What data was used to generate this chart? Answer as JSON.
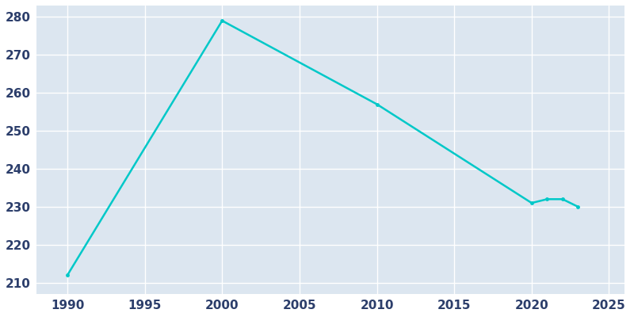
{
  "years": [
    1990,
    2000,
    2010,
    2020,
    2021,
    2022,
    2023
  ],
  "population": [
    212,
    279,
    257,
    231,
    232,
    232,
    230
  ],
  "line_color": "#00C8C8",
  "plot_bg_color": "#dce6f0",
  "fig_bg_color": "#ffffff",
  "grid_color": "#ffffff",
  "text_color": "#2c3e6b",
  "xlim": [
    1988,
    2026
  ],
  "ylim": [
    207,
    283
  ],
  "xticks": [
    1990,
    1995,
    2000,
    2005,
    2010,
    2015,
    2020,
    2025
  ],
  "yticks": [
    210,
    220,
    230,
    240,
    250,
    260,
    270,
    280
  ],
  "figsize": [
    8.0,
    4.0
  ],
  "dpi": 100
}
